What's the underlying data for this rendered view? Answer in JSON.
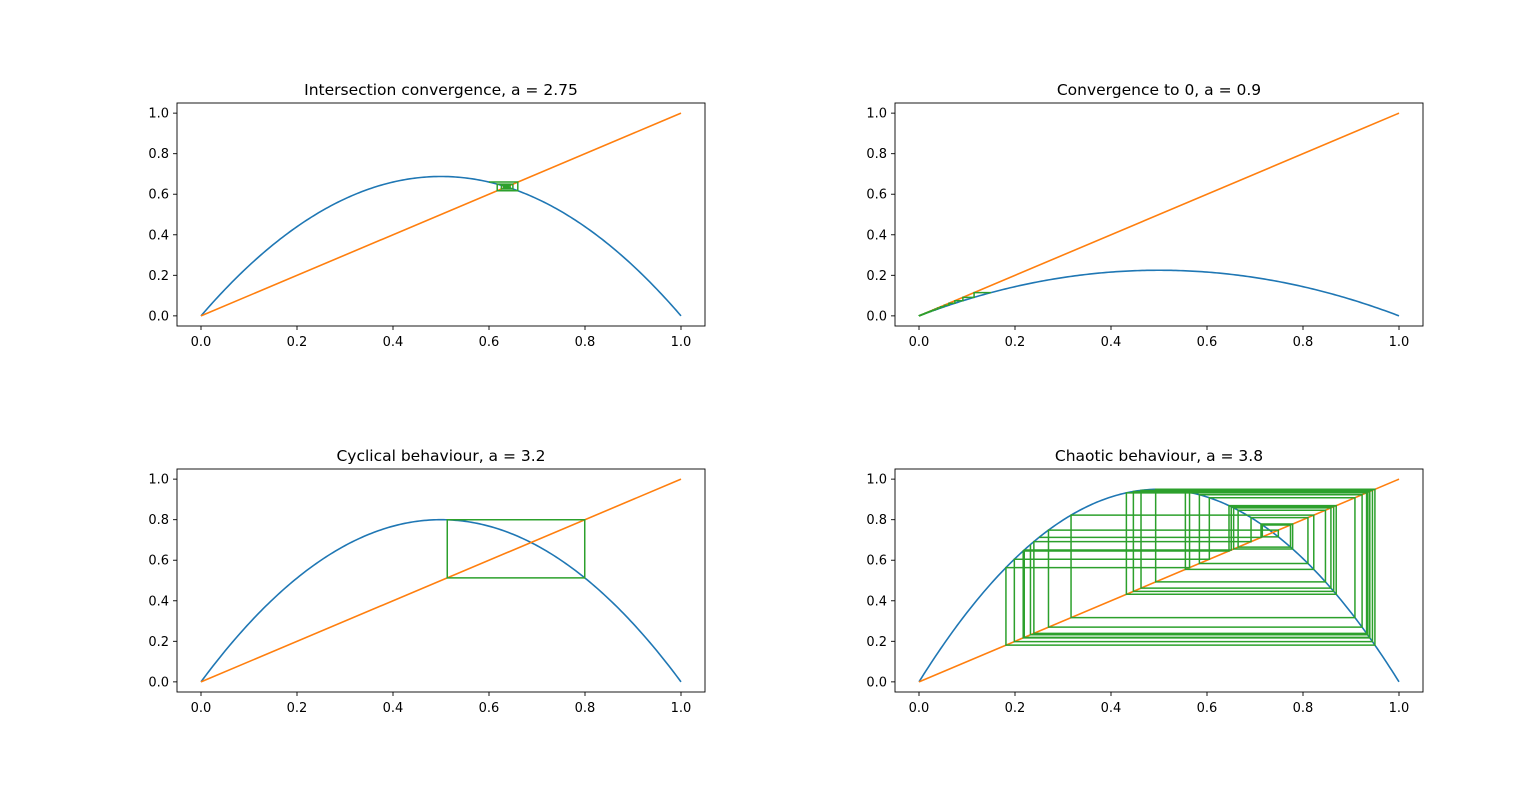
{
  "figure": {
    "colors": {
      "curve": "#1f77b4",
      "diagonal": "#ff7f0e",
      "cobweb": "#2ca02c",
      "axes": "#000000",
      "background": "#ffffff"
    }
  },
  "chart_data": [
    {
      "type": "line",
      "title": "Intersection convergence, a = 2.75",
      "xlabel": "",
      "ylabel": "",
      "xlim": [
        -0.05,
        1.05
      ],
      "ylim": [
        -0.05,
        1.05
      ],
      "xticks": [
        "0.0",
        "0.2",
        "0.4",
        "0.6",
        "0.8",
        "1.0"
      ],
      "yticks": [
        "0.0",
        "0.2",
        "0.4",
        "0.6",
        "0.8",
        "1.0"
      ],
      "grid": false,
      "legend": "none",
      "a": 2.75,
      "series": [
        {
          "label_key": "curve",
          "function": "a*x*(1-x)",
          "x_range": [
            0,
            1
          ]
        },
        {
          "label_key": "diagonal",
          "function": "x",
          "x_range": [
            0,
            1
          ]
        },
        {
          "label_key": "cobweb",
          "x0": 0.6,
          "iterations": 200
        }
      ]
    },
    {
      "type": "line",
      "title": "Convergence to 0, a = 0.9",
      "xlabel": "",
      "ylabel": "",
      "xlim": [
        -0.05,
        1.05
      ],
      "ylim": [
        -0.05,
        1.05
      ],
      "xticks": [
        "0.0",
        "0.2",
        "0.4",
        "0.6",
        "0.8",
        "1.0"
      ],
      "yticks": [
        "0.0",
        "0.2",
        "0.4",
        "0.6",
        "0.8",
        "1.0"
      ],
      "grid": false,
      "legend": "none",
      "a": 0.9,
      "series": [
        {
          "label_key": "curve",
          "function": "a*x*(1-x)",
          "x_range": [
            0,
            1
          ]
        },
        {
          "label_key": "diagonal",
          "function": "x",
          "x_range": [
            0,
            1
          ]
        },
        {
          "label_key": "cobweb",
          "x0": 0.15,
          "iterations": 200
        }
      ]
    },
    {
      "type": "line",
      "title": "Cyclical behaviour, a = 3.2",
      "xlabel": "",
      "ylabel": "",
      "xlim": [
        -0.05,
        1.05
      ],
      "ylim": [
        -0.05,
        1.05
      ],
      "xticks": [
        "0.0",
        "0.2",
        "0.4",
        "0.6",
        "0.8",
        "1.0"
      ],
      "yticks": [
        "0.0",
        "0.2",
        "0.4",
        "0.6",
        "0.8",
        "1.0"
      ],
      "grid": false,
      "legend": "none",
      "a": 3.2,
      "series": [
        {
          "label_key": "curve",
          "function": "a*x*(1-x)",
          "x_range": [
            0,
            1
          ]
        },
        {
          "label_key": "diagonal",
          "function": "x",
          "x_range": [
            0,
            1
          ]
        },
        {
          "label_key": "cobweb",
          "x0": 0.513,
          "iterations": 200
        }
      ]
    },
    {
      "type": "line",
      "title": "Chaotic behaviour, a = 3.8",
      "xlabel": "",
      "ylabel": "",
      "xlim": [
        -0.05,
        1.05
      ],
      "ylim": [
        -0.05,
        1.05
      ],
      "xticks": [
        "0.0",
        "0.2",
        "0.4",
        "0.6",
        "0.8",
        "1.0"
      ],
      "yticks": [
        "0.0",
        "0.2",
        "0.4",
        "0.6",
        "0.8",
        "1.0"
      ],
      "grid": false,
      "legend": "none",
      "a": 3.8,
      "series": [
        {
          "label_key": "curve",
          "function": "a*x*(1-x)",
          "x_range": [
            0,
            1
          ]
        },
        {
          "label_key": "diagonal",
          "function": "x",
          "x_range": [
            0,
            1
          ]
        },
        {
          "label_key": "cobweb",
          "x0": 0.25,
          "iterations": 40
        }
      ]
    }
  ]
}
